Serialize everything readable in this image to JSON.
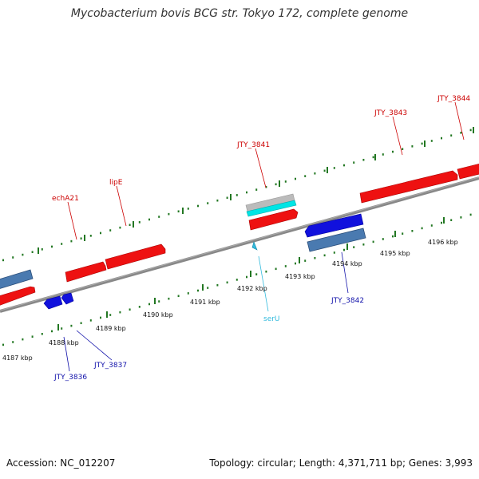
{
  "title": "Mycobacterium bovis BCG str. Tokyo 172, complete genome",
  "footer": {
    "accession": "Accession: NC_012207",
    "summary": "Topology: circular; Length: 4,371,711 bp; Genes: 3,993"
  },
  "colors": {
    "forward_gene": "#ee1111",
    "reverse_gene": "#1111dd",
    "steelblue_gene": "#4a7ab0",
    "trna": "#33bbdd",
    "cyan_feature": "#00e5e5",
    "gray_feature": "#bbbbbb",
    "tick": "#227722",
    "axis": "#888888",
    "forward_label": "#cc0000",
    "reverse_label": "#1111aa"
  },
  "ticks": [
    {
      "label": "4187 kbp"
    },
    {
      "label": "4188 kbp"
    },
    {
      "label": "4189 kbp"
    },
    {
      "label": "4190 kbp"
    },
    {
      "label": "4191 kbp"
    },
    {
      "label": "4192 kbp"
    },
    {
      "label": "4193 kbp"
    },
    {
      "label": "4194 kbp"
    },
    {
      "label": "4195 kbp"
    },
    {
      "label": "4196 kbp"
    }
  ],
  "gene_labels": [
    {
      "name": "echA21",
      "strand": "forward"
    },
    {
      "name": "lipE",
      "strand": "forward"
    },
    {
      "name": "JTY_3841",
      "strand": "forward"
    },
    {
      "name": "JTY_3843",
      "strand": "forward"
    },
    {
      "name": "JTY_3844",
      "strand": "forward"
    },
    {
      "name": "JTY_3842",
      "strand": "reverse"
    },
    {
      "name": "serU",
      "strand": "trna"
    },
    {
      "name": "JTY_3837",
      "strand": "reverse"
    },
    {
      "name": "JTY_3836",
      "strand": "reverse"
    }
  ]
}
